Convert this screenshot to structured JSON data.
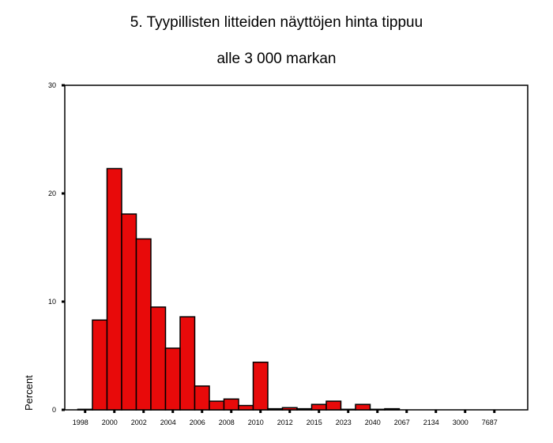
{
  "chart_data": {
    "type": "bar",
    "title_line1": "5. Tyypillisten litteiden näyttöjen hinta tippuu",
    "title_line2": "alle 3 000 markan",
    "ylabel": "Percent",
    "xlabel": "",
    "ylim": [
      0,
      30
    ],
    "y_ticks": [
      0,
      10,
      20,
      30
    ],
    "x_tick_labels": [
      "1998",
      "2000",
      "2002",
      "2004",
      "2006",
      "2008",
      "2010",
      "2012",
      "2015",
      "2023",
      "2040",
      "2067",
      "2134",
      "3000",
      "7687"
    ],
    "values": [
      0.05,
      8.3,
      22.3,
      18.1,
      15.8,
      9.5,
      5.7,
      8.6,
      2.2,
      0.8,
      1.0,
      0.4,
      4.4,
      0.1,
      0.2,
      0.1,
      0.5,
      0.8,
      0.05,
      0.5,
      0.05,
      0.1
    ],
    "bar_color": "#e80a0a",
    "grid": false,
    "legend": "none"
  }
}
